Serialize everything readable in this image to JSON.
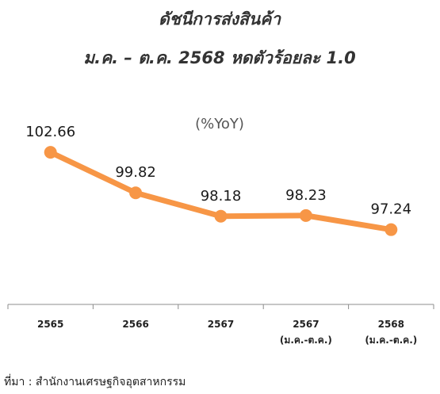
{
  "chart_data": {
    "type": "line",
    "title": "ดัชนีการส่งสินค้า",
    "subtitle": "ม.ค. – ต.ค. 2568 หดตัวร้อยละ 1.0",
    "unit_label": "(%YoY)",
    "categories": [
      [
        "2565"
      ],
      [
        "2566"
      ],
      [
        "2567"
      ],
      [
        "2567",
        "(ม.ค.-ต.ค.)"
      ],
      [
        "2568",
        "(ม.ค.-ต.ค.)"
      ]
    ],
    "series": [
      {
        "values": [
          102.66,
          99.82,
          98.18,
          98.23,
          97.24
        ],
        "labels": [
          "102.66",
          "99.82",
          "98.18",
          "98.23",
          "97.24"
        ],
        "color": "#F79646"
      }
    ],
    "ylim": [
      92,
      105
    ],
    "grid": false,
    "legend": "none",
    "axis_color": "#8c8c8c"
  },
  "source": "ที่มา : สำนักงานเศรษฐกิจอุตสาหกรรม"
}
